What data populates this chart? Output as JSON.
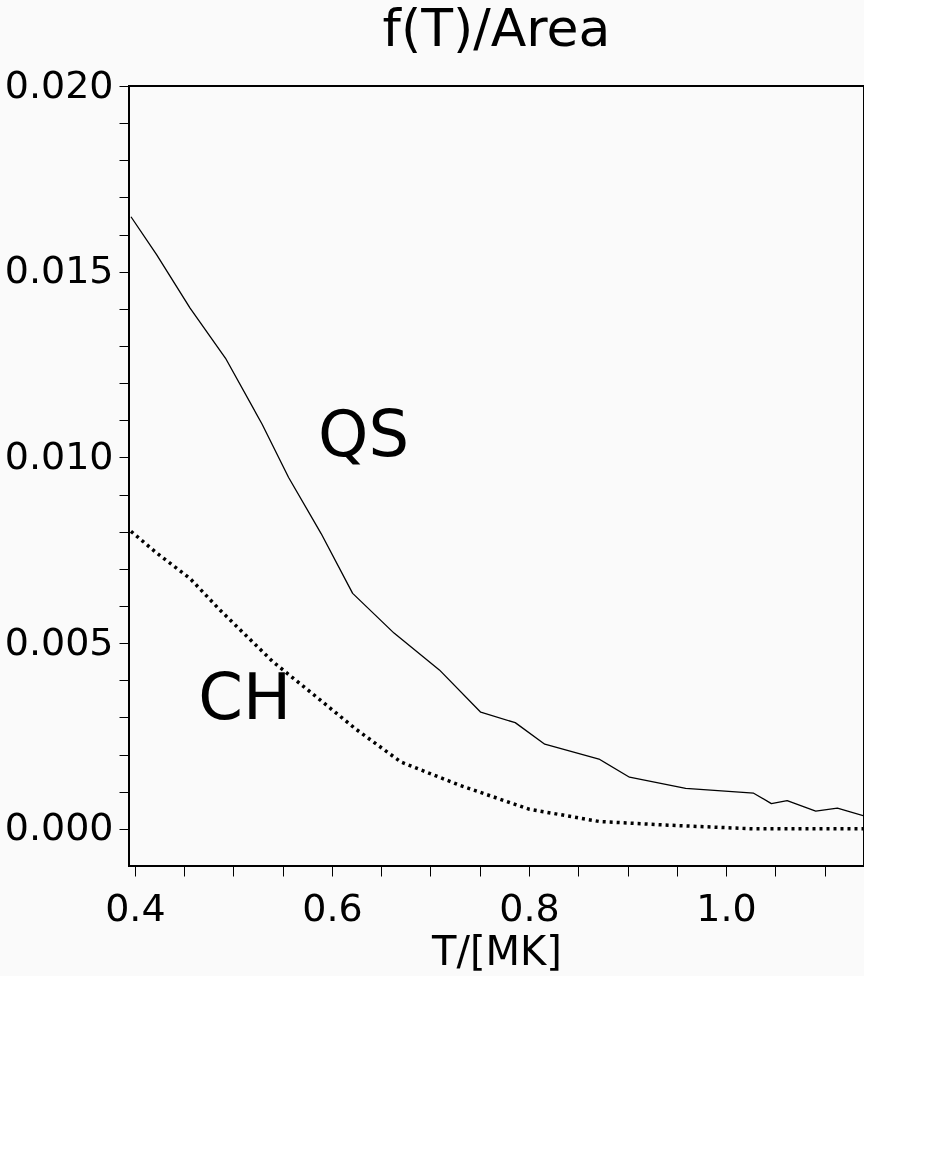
{
  "chart_data": {
    "type": "line",
    "title": "f(T)/Area",
    "xlabel": "T/[MK]",
    "xlim": [
      0.394,
      1.14
    ],
    "ylim": [
      -0.001,
      0.02
    ],
    "xticks": [
      0.4,
      {
        "value": 0.45,
        "label": null
      },
      {
        "value": 0.5,
        "label": null
      },
      {
        "value": 0.55,
        "label": null
      },
      0.6,
      {
        "value": 0.65,
        "label": null
      },
      {
        "value": 0.7,
        "label": null
      },
      {
        "value": 0.75,
        "label": null
      },
      0.8,
      {
        "value": 0.85,
        "label": null
      },
      {
        "value": 0.9,
        "label": null
      },
      {
        "value": 0.95,
        "label": null
      },
      {
        "value": 1.0,
        "label": "1.0"
      },
      {
        "value": 1.05,
        "label": null
      },
      {
        "value": 1.1,
        "label": null
      }
    ],
    "yticks": [
      {
        "value": 0.0,
        "label": "0.000"
      },
      {
        "value": 0.001,
        "label": null
      },
      {
        "value": 0.002,
        "label": null
      },
      {
        "value": 0.003,
        "label": null
      },
      {
        "value": 0.004,
        "label": null
      },
      0.005,
      {
        "value": 0.006,
        "label": null
      },
      {
        "value": 0.007,
        "label": null
      },
      {
        "value": 0.008,
        "label": null
      },
      {
        "value": 0.009,
        "label": null
      },
      {
        "value": 0.01,
        "label": "0.010"
      },
      {
        "value": 0.011,
        "label": null
      },
      {
        "value": 0.012,
        "label": null
      },
      {
        "value": 0.013,
        "label": null
      },
      {
        "value": 0.014,
        "label": null
      },
      0.015,
      {
        "value": 0.016,
        "label": null
      },
      {
        "value": 0.017,
        "label": null
      },
      {
        "value": 0.018,
        "label": null
      },
      {
        "value": 0.019,
        "label": null
      },
      {
        "value": 0.02,
        "label": "0.020"
      }
    ],
    "grid": false,
    "marker": "none",
    "series": [
      {
        "name": "QS",
        "color": "#000000",
        "line_style": "solid",
        "x": [
          0.396,
          0.422,
          0.456,
          0.492,
          0.529,
          0.556,
          0.589,
          0.621,
          0.663,
          0.709,
          0.751,
          0.786,
          0.816,
          0.871,
          0.902,
          0.959,
          1.028,
          1.046,
          1.062,
          1.091,
          1.113,
          1.14
        ],
        "values": [
          0.01648,
          0.01546,
          0.01402,
          0.01267,
          0.0109,
          0.00946,
          0.00795,
          0.00634,
          0.00527,
          0.00428,
          0.00314,
          0.00286,
          0.00228,
          0.00188,
          0.00139,
          0.00109,
          0.00096,
          0.00068,
          0.00076,
          0.00048,
          0.00056,
          0.00035
        ]
      },
      {
        "name": "CH",
        "color": "#000000",
        "line_style": "dotted",
        "x": [
          0.396,
          0.422,
          0.456,
          0.486,
          0.54,
          0.589,
          0.624,
          0.67,
          0.73,
          0.8,
          0.871,
          0.941,
          1.028,
          1.14
        ],
        "values": [
          0.00801,
          0.00743,
          0.00674,
          0.0059,
          0.0045,
          0.00345,
          0.00269,
          0.0018,
          0.00117,
          0.00053,
          0.0002,
          0.0001,
          0.0,
          0.0
        ]
      }
    ]
  }
}
